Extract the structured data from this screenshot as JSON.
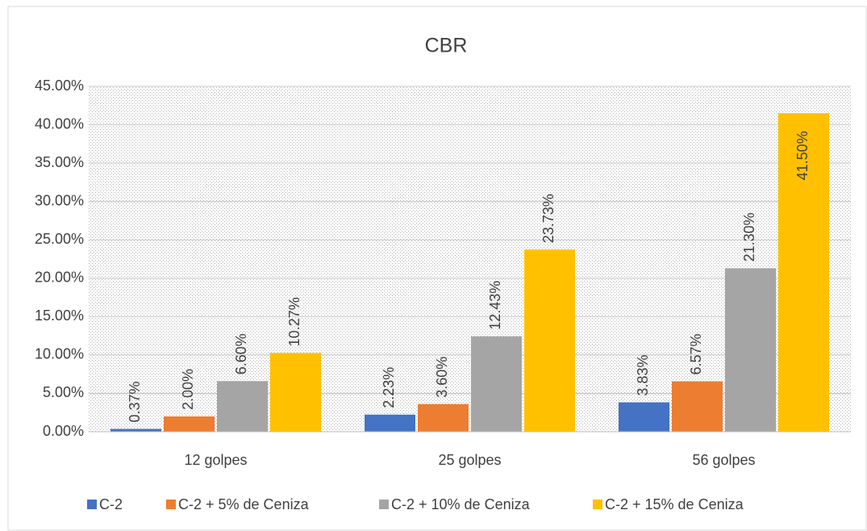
{
  "chart_data": {
    "type": "bar",
    "title": "CBR",
    "categories": [
      "12 golpes",
      "25 golpes",
      "56 golpes"
    ],
    "series": [
      {
        "name": "C-2",
        "color": "#4472c4",
        "values": [
          0.37,
          2.23,
          3.83
        ],
        "value_labels": [
          "0.37%",
          "2.23%",
          "3.83%"
        ]
      },
      {
        "name": "C-2 + 5% de Ceniza",
        "color": "#ed7d31",
        "values": [
          2.0,
          3.6,
          6.57
        ],
        "value_labels": [
          "2.00%",
          "3.60%",
          "6.57%"
        ]
      },
      {
        "name": "C-2 + 10% de Ceniza",
        "color": "#a5a5a5",
        "values": [
          6.6,
          12.43,
          21.3
        ],
        "value_labels": [
          "6.60%",
          "12.43%",
          "21.30%"
        ]
      },
      {
        "name": "C-2 + 15% de Ceniza",
        "color": "#ffc000",
        "values": [
          10.27,
          23.73,
          41.5
        ],
        "value_labels": [
          "10.27%",
          "23.73%",
          "41.50%"
        ]
      }
    ],
    "ylim": [
      0,
      45
    ],
    "yticks": [
      {
        "value": 0,
        "label": "0.00%"
      },
      {
        "value": 5,
        "label": "5.00%"
      },
      {
        "value": 10,
        "label": "10.00%"
      },
      {
        "value": 15,
        "label": "15.00%"
      },
      {
        "value": 20,
        "label": "20.00%"
      },
      {
        "value": 25,
        "label": "25.00%"
      },
      {
        "value": 30,
        "label": "30.00%"
      },
      {
        "value": 35,
        "label": "35.00%"
      },
      {
        "value": 40,
        "label": "40.00%"
      },
      {
        "value": 45,
        "label": "45.00%"
      }
    ],
    "grid": true,
    "legend": "bottom"
  }
}
